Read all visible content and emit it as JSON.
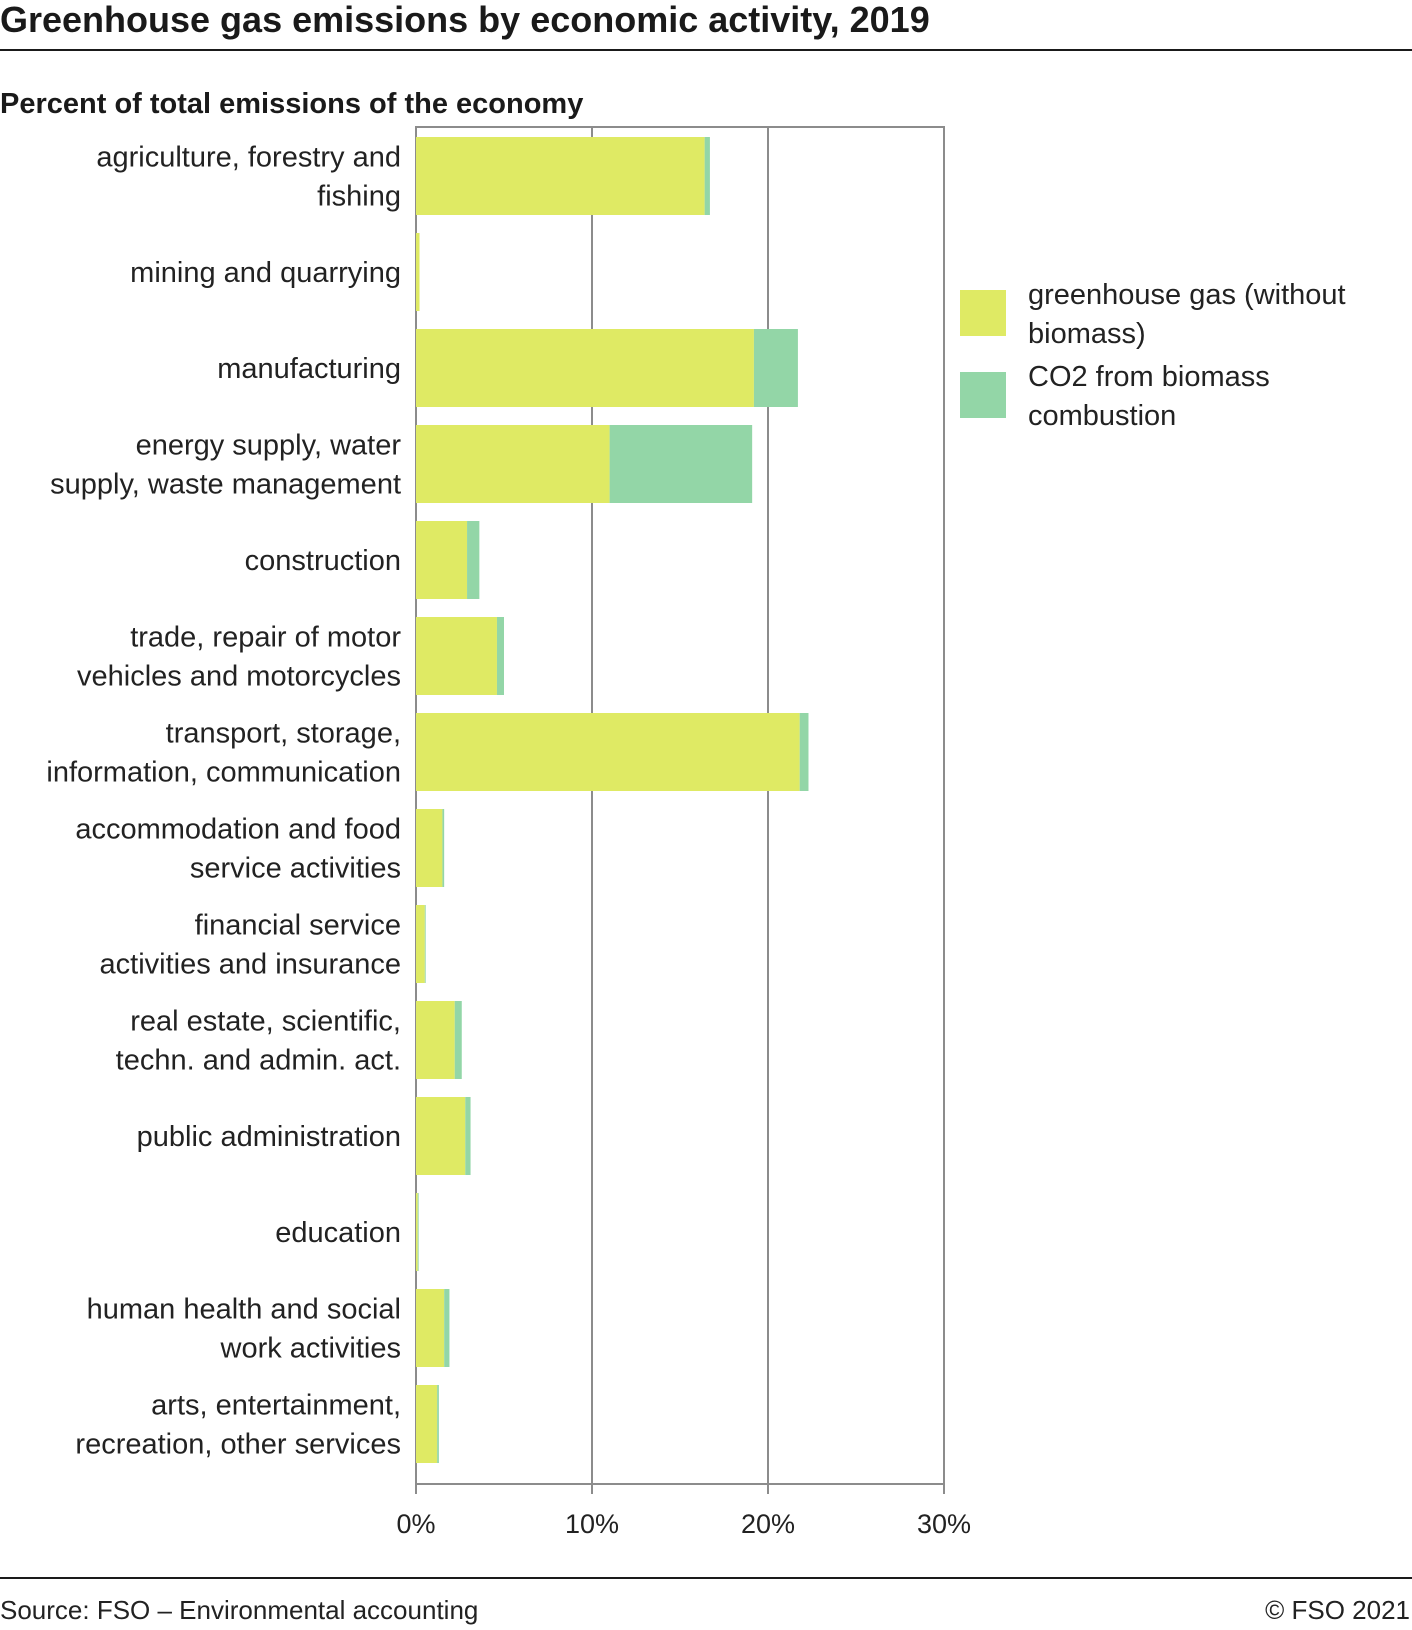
{
  "header": {
    "title": "Greenhouse gas emissions by economic activity, 2019",
    "subtitle": "Percent of total emissions of the economy"
  },
  "footer": {
    "source": "Source: FSO – Environmental accounting",
    "copyright": "© FSO 2021"
  },
  "colors": {
    "ghg": "#dfea64",
    "biomass": "#93d6a7",
    "grid": "#8c8c8c",
    "rule": "#1a1a1a"
  },
  "chart_data": {
    "type": "bar",
    "orientation": "horizontal",
    "stacked": true,
    "categories": [
      [
        "agriculture, forestry and",
        "fishing"
      ],
      [
        "mining and quarrying"
      ],
      [
        "manufacturing"
      ],
      [
        "energy supply, water",
        "supply, waste management"
      ],
      [
        "construction"
      ],
      [
        "trade, repair of motor",
        "vehicles and motorcycles"
      ],
      [
        "transport, storage,",
        "information, communication"
      ],
      [
        "accommodation and food",
        "service activities"
      ],
      [
        "financial service",
        "activities and insurance"
      ],
      [
        "real estate, scientific,",
        "techn. and admin. act."
      ],
      [
        "public administration"
      ],
      [
        "education"
      ],
      [
        "human health and social",
        "work activities"
      ],
      [
        "arts, entertainment,",
        "recreation, other services"
      ]
    ],
    "series": [
      {
        "name": "greenhouse gas (without biomass)",
        "legend_lines": [
          "greenhouse gas (without",
          "biomass)"
        ],
        "color": "#dfea64",
        "values": [
          16.4,
          0.2,
          19.2,
          11.0,
          2.9,
          4.6,
          21.8,
          1.5,
          0.5,
          2.2,
          2.8,
          0.1,
          1.6,
          1.2
        ]
      },
      {
        "name": "CO2 from biomass combustion",
        "legend_lines": [
          "CO2 from biomass",
          "combustion"
        ],
        "color": "#93d6a7",
        "values": [
          0.3,
          0.0,
          2.5,
          8.1,
          0.7,
          0.4,
          0.5,
          0.1,
          0.05,
          0.4,
          0.3,
          0.05,
          0.3,
          0.1
        ]
      }
    ],
    "xlim": [
      0,
      30
    ],
    "xticks": [
      "0%",
      "10%",
      "20%",
      "30%"
    ],
    "grid": true,
    "legend_position": "right"
  }
}
